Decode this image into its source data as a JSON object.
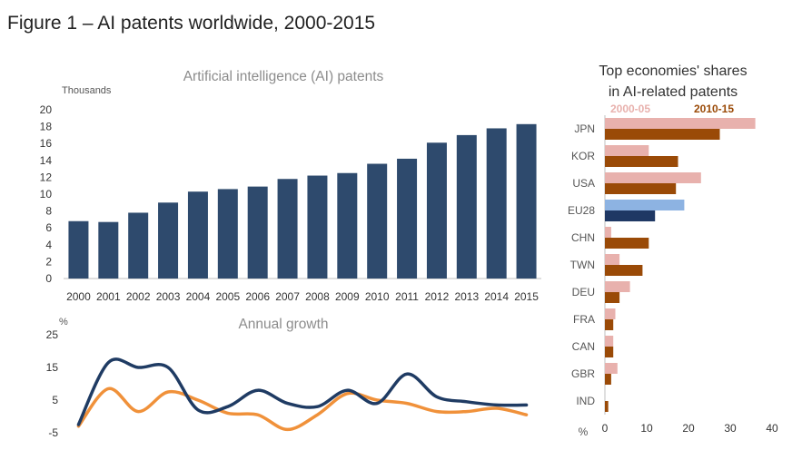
{
  "figure_title": "Figure 1 – AI patents worldwide, 2000-2015",
  "colors": {
    "bar": "#2e4a6d",
    "growth_line_dark": "#1f3b63",
    "growth_line_orange": "#f0913a",
    "share_2000_05": "#e8b1ad",
    "share_2010_15": "#9a4a07",
    "share_eu_2000_05": "#8db3e2",
    "share_eu_2010_15": "#1f3864"
  },
  "chart_data": [
    {
      "type": "bar",
      "title": "Artificial intelligence (AI) patents",
      "unit_label": "Thousands",
      "categories": [
        "2000",
        "2001",
        "2002",
        "2003",
        "2004",
        "2005",
        "2006",
        "2007",
        "2008",
        "2009",
        "2010",
        "2011",
        "2012",
        "2013",
        "2014",
        "2015"
      ],
      "values": [
        6.8,
        6.7,
        7.8,
        9.0,
        10.3,
        10.6,
        10.9,
        11.8,
        12.2,
        12.5,
        13.6,
        14.2,
        16.1,
        17.0,
        17.8,
        18.3
      ],
      "ylim": [
        0,
        20
      ],
      "yticks": [
        0,
        2,
        4,
        6,
        8,
        10,
        12,
        14,
        16,
        18,
        20
      ],
      "grid": false
    },
    {
      "type": "line",
      "title": "Annual growth",
      "unit_label": "%",
      "x": [
        "2000",
        "2001",
        "2002",
        "2003",
        "2004",
        "2005",
        "2006",
        "2007",
        "2008",
        "2009",
        "2010",
        "2011",
        "2012",
        "2013",
        "2014",
        "2015"
      ],
      "series": [
        {
          "values": [
            -2.5,
            16.5,
            15.0,
            15.0,
            2.0,
            3.0,
            8.0,
            4.0,
            3.0,
            8.0,
            4.0,
            13.0,
            6.0,
            4.5,
            3.5,
            3.5
          ]
        },
        {
          "values": [
            -3.0,
            8.5,
            1.5,
            7.5,
            5.0,
            1.0,
            0.5,
            -4.0,
            0.5,
            7.0,
            5.0,
            4.0,
            1.5,
            1.5,
            2.5,
            0.5
          ]
        }
      ],
      "ylim": [
        -5,
        25
      ],
      "yticks": [
        -5,
        5,
        15,
        25
      ],
      "grid": false
    },
    {
      "type": "bar",
      "orientation": "horizontal",
      "title": "Top economies' shares in AI-related  patents",
      "unit_label": "%",
      "categories": [
        "JPN",
        "KOR",
        "USA",
        "EU28",
        "CHN",
        "TWN",
        "DEU",
        "FRA",
        "CAN",
        "GBR",
        "IND"
      ],
      "series": [
        {
          "name": "2000-05",
          "values": [
            36,
            10.5,
            23,
            19,
            1.5,
            3.5,
            6,
            2.5,
            2,
            3,
            0
          ]
        },
        {
          "name": "2010-15",
          "values": [
            27.5,
            17.5,
            17,
            12,
            10.5,
            9,
            3.5,
            2,
            2,
            1.5,
            0.8
          ]
        }
      ],
      "xlim": [
        0,
        40
      ],
      "xticks": [
        0,
        10,
        20,
        30,
        40
      ],
      "legend": "top",
      "grid": false
    }
  ]
}
